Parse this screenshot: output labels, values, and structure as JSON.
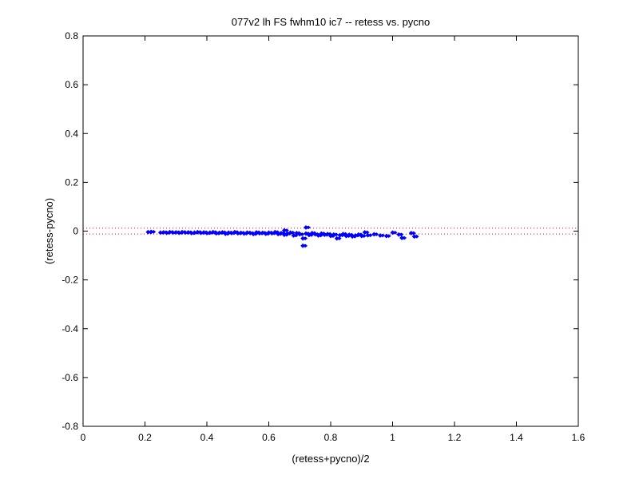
{
  "chart_data": {
    "type": "scatter",
    "title": "077v2 lh FS fwhm10 ic7 -- retess vs. pycno",
    "xlabel": "(retess+pycno)/2",
    "ylabel": "(retess-pycno)",
    "xlim": [
      0,
      1.6
    ],
    "ylim": [
      -0.8,
      0.8
    ],
    "xticks": [
      0,
      0.2,
      0.4,
      0.6,
      0.8,
      1,
      1.2,
      1.4,
      1.6
    ],
    "yticks": [
      -0.8,
      -0.6,
      -0.4,
      -0.2,
      0,
      0.2,
      0.4,
      0.6,
      0.8
    ],
    "xtick_labels": [
      "0",
      "0.2",
      "0.4",
      "0.6",
      "0.8",
      "1",
      "1.2",
      "1.4",
      "1.6"
    ],
    "ytick_labels": [
      "-0.8",
      "-0.6",
      "-0.4",
      "-0.2",
      "0",
      "0.2",
      "0.4",
      "0.6",
      "0.8"
    ],
    "reference_lines": [
      0.012,
      -0.012
    ],
    "reference_line_color": "#ff0000",
    "marker_color": "#0000ff",
    "grid": false,
    "series": [
      {
        "points": [
          [
            0.21,
            -0.004
          ],
          [
            0.22,
            -0.003
          ],
          [
            0.25,
            -0.006
          ],
          [
            0.26,
            -0.005
          ],
          [
            0.27,
            -0.007
          ],
          [
            0.28,
            -0.004
          ],
          [
            0.29,
            -0.006
          ],
          [
            0.3,
            -0.005
          ],
          [
            0.31,
            -0.007
          ],
          [
            0.32,
            -0.004
          ],
          [
            0.33,
            -0.006
          ],
          [
            0.34,
            -0.005
          ],
          [
            0.35,
            -0.008
          ],
          [
            0.36,
            -0.006
          ],
          [
            0.37,
            -0.004
          ],
          [
            0.38,
            -0.007
          ],
          [
            0.39,
            -0.005
          ],
          [
            0.4,
            -0.008
          ],
          [
            0.41,
            -0.006
          ],
          [
            0.42,
            -0.004
          ],
          [
            0.43,
            -0.009
          ],
          [
            0.44,
            -0.007
          ],
          [
            0.45,
            -0.005
          ],
          [
            0.46,
            -0.011
          ],
          [
            0.47,
            -0.006
          ],
          [
            0.48,
            -0.008
          ],
          [
            0.49,
            -0.004
          ],
          [
            0.5,
            -0.009
          ],
          [
            0.51,
            -0.007
          ],
          [
            0.52,
            -0.01
          ],
          [
            0.53,
            -0.006
          ],
          [
            0.54,
            -0.008
          ],
          [
            0.55,
            -0.012
          ],
          [
            0.56,
            -0.005
          ],
          [
            0.57,
            -0.009
          ],
          [
            0.58,
            -0.007
          ],
          [
            0.59,
            -0.011
          ],
          [
            0.6,
            -0.006
          ],
          [
            0.61,
            -0.009
          ],
          [
            0.62,
            -0.004
          ],
          [
            0.63,
            -0.012
          ],
          [
            0.64,
            -0.008
          ],
          [
            0.65,
            0.003
          ],
          [
            0.65,
            -0.015
          ],
          [
            0.66,
            -0.01
          ],
          [
            0.67,
            -0.006
          ],
          [
            0.68,
            -0.018
          ],
          [
            0.69,
            -0.008
          ],
          [
            0.7,
            -0.013
          ],
          [
            0.71,
            -0.03
          ],
          [
            0.71,
            -0.06
          ],
          [
            0.72,
            0.015
          ],
          [
            0.72,
            -0.01
          ],
          [
            0.73,
            -0.016
          ],
          [
            0.74,
            -0.008
          ],
          [
            0.75,
            -0.013
          ],
          [
            0.76,
            -0.018
          ],
          [
            0.77,
            -0.01
          ],
          [
            0.78,
            -0.015
          ],
          [
            0.79,
            -0.012
          ],
          [
            0.8,
            -0.02
          ],
          [
            0.81,
            -0.014
          ],
          [
            0.82,
            -0.03
          ],
          [
            0.83,
            -0.017
          ],
          [
            0.84,
            -0.012
          ],
          [
            0.85,
            -0.02
          ],
          [
            0.86,
            -0.015
          ],
          [
            0.87,
            -0.022
          ],
          [
            0.88,
            -0.018
          ],
          [
            0.89,
            -0.014
          ],
          [
            0.9,
            -0.02
          ],
          [
            0.91,
            -0.005
          ],
          [
            0.92,
            -0.017
          ],
          [
            0.94,
            -0.013
          ],
          [
            0.96,
            -0.018
          ],
          [
            0.98,
            -0.02
          ],
          [
            1.0,
            -0.006
          ],
          [
            1.02,
            -0.014
          ],
          [
            1.03,
            -0.028
          ],
          [
            1.06,
            -0.008
          ],
          [
            1.07,
            -0.022
          ]
        ]
      }
    ]
  }
}
